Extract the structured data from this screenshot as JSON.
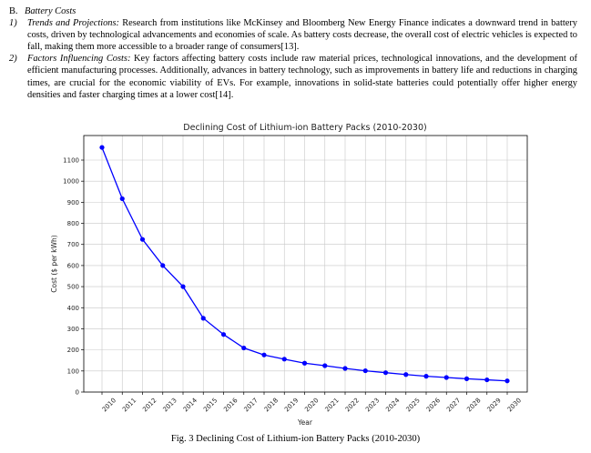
{
  "section": {
    "number": "B.",
    "title": "Battery Costs"
  },
  "items": [
    {
      "number": "1)",
      "lead": "Trends and Projections:",
      "text": " Research from institutions like McKinsey and Bloomberg New Energy Finance indicates a downward trend in battery costs, driven by technological advancements and economies of scale. As battery costs decrease, the overall cost of electric vehicles is expected to fall, making them more accessible to a broader range of consumers[13]."
    },
    {
      "number": "2)",
      "lead": "Factors Influencing Costs:",
      "text": " Key factors affecting battery costs include raw material prices, technological innovations, and the development of efficient manufacturing processes. Additionally, advances in battery technology, such as improvements in battery life and reductions in charging times, are crucial for the economic viability of EVs. For example, innovations in solid-state batteries could potentially offer higher energy densities and faster charging times at a lower cost[14]."
    }
  ],
  "caption": "Fig. 3 Declining Cost of Lithium-ion Battery Packs (2010-2030)",
  "chart_data": {
    "type": "line",
    "title": "Declining Cost of Lithium-ion Battery Packs (2010-2030)",
    "xlabel": "Year",
    "ylabel": "Cost ($ per kWh)",
    "x": [
      2010,
      2011,
      2012,
      2013,
      2014,
      2015,
      2016,
      2017,
      2018,
      2019,
      2020,
      2021,
      2022,
      2023,
      2024,
      2025,
      2026,
      2027,
      2028,
      2029,
      2030
    ],
    "series": [
      {
        "values": [
          1160,
          917,
          724,
          600,
          500,
          350,
          273,
          209,
          176,
          156,
          137,
          125,
          112,
          101,
          92,
          83,
          75,
          69,
          63,
          58,
          53
        ]
      }
    ],
    "xlim": [
      2010,
      2030
    ],
    "ylim": [
      0,
      1200
    ],
    "yticks": [
      0,
      100,
      200,
      300,
      400,
      500,
      600,
      700,
      800,
      900,
      1000,
      1100
    ],
    "grid": true,
    "color": "#0000ff",
    "marker": "circle"
  }
}
